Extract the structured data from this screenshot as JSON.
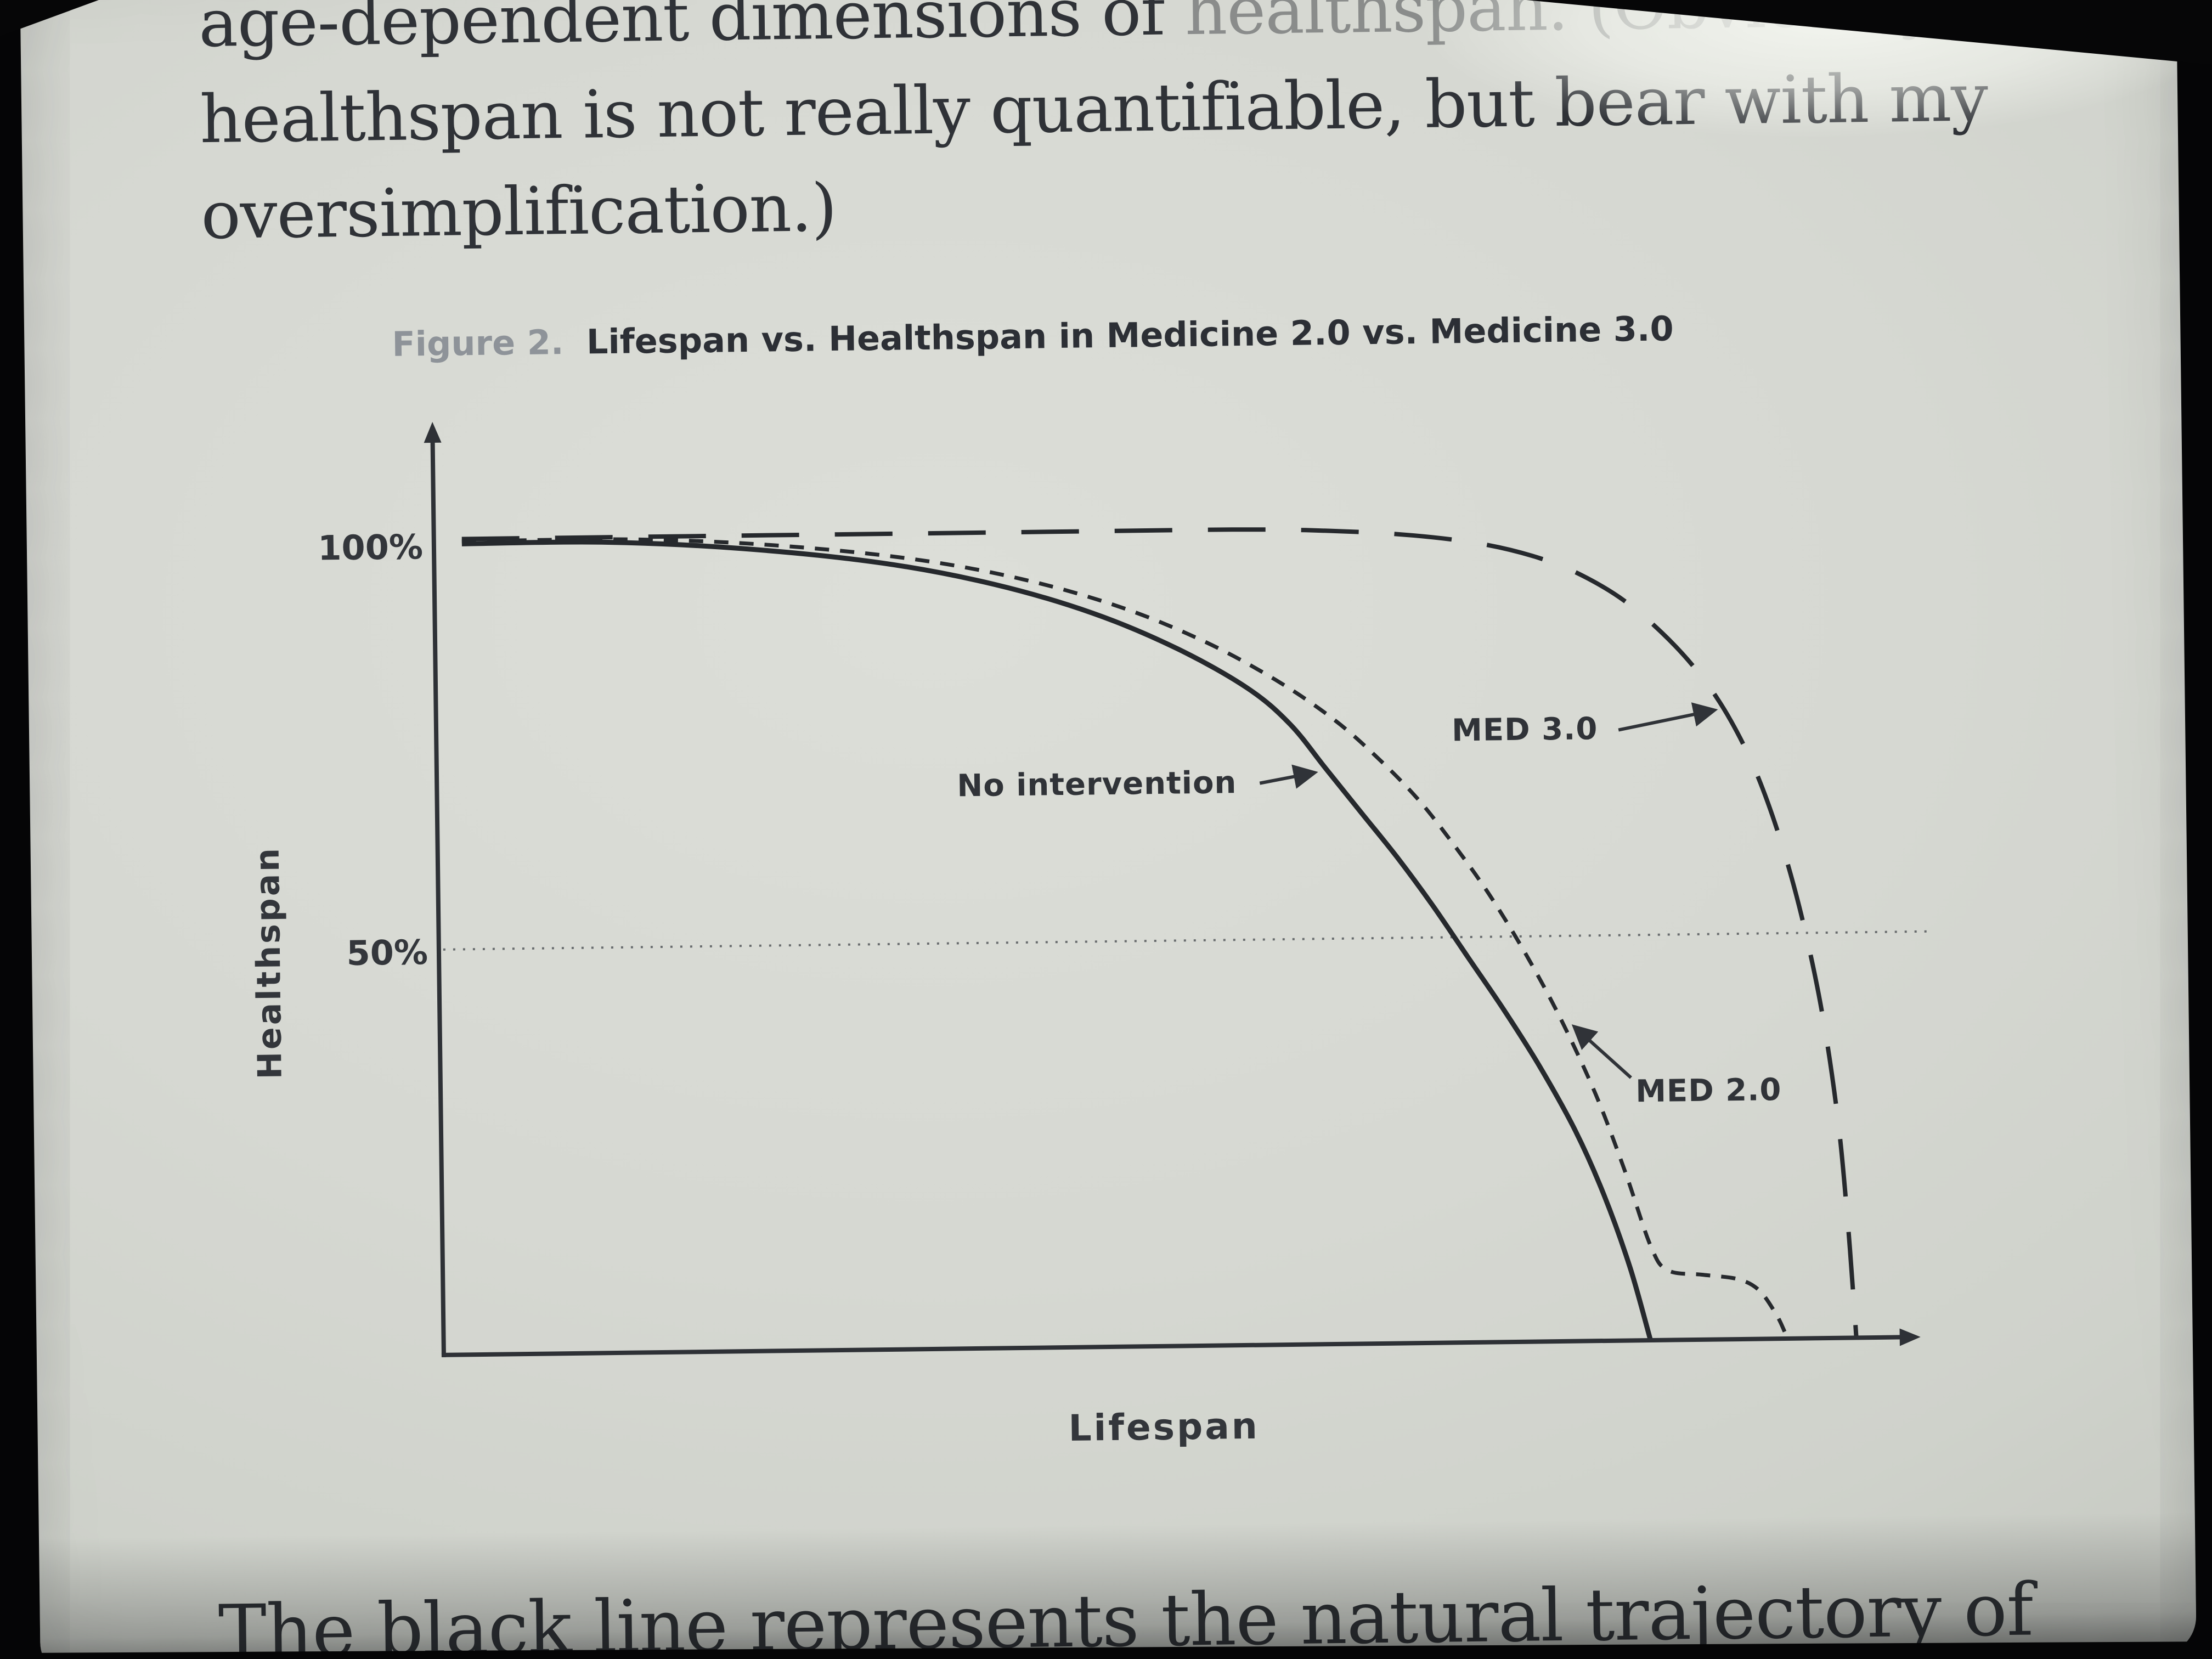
{
  "colors": {
    "page_bg": "#d6d8d2",
    "ink": "#2f3237",
    "caption_gray": "#8e9399",
    "curve": "#26292d",
    "bezel": "#050506"
  },
  "page": {
    "paragraph_top": {
      "line1_visible": "age-dependent dimensions of ",
      "line1_faded": "healthspan. (Obviously,",
      "line2": "healthspan is not really quantifiable, but bear with my",
      "line3": "oversimplification.)"
    },
    "caption": {
      "label": "Figure 2.",
      "title": "Lifespan vs. Healthspan in Medicine 2.0 vs. Medicine 3.0"
    },
    "paragraph_bottom": "The black line represents the natural trajectory of"
  },
  "chart_data": {
    "type": "line",
    "title": "Figure 2. Lifespan vs. Healthspan in Medicine 2.0 vs. Medicine 3.0",
    "xlabel": "Lifespan",
    "ylabel": "Healthspan",
    "yticks": [
      "100%",
      "50%"
    ],
    "ytick_values": [
      100,
      50
    ],
    "xlim": [
      0,
      100
    ],
    "ylim": [
      0,
      105
    ],
    "grid": false,
    "legend_position": "inline-annotations",
    "reference_line": {
      "y": 50,
      "style": "dotted"
    },
    "series": [
      {
        "name": "No intervention",
        "style": "solid",
        "points": [
          [
            0,
            100
          ],
          [
            10,
            100
          ],
          [
            20,
            99
          ],
          [
            30,
            97
          ],
          [
            38,
            94.2
          ],
          [
            45,
            90.5
          ],
          [
            51,
            86
          ],
          [
            56,
            81
          ],
          [
            59,
            76.5
          ],
          [
            61.5,
            71
          ],
          [
            64,
            65.5
          ],
          [
            66.5,
            60
          ],
          [
            69,
            54
          ],
          [
            71.5,
            47.5
          ],
          [
            74,
            41
          ],
          [
            76.5,
            34
          ],
          [
            79,
            26
          ],
          [
            81,
            18
          ],
          [
            82.8,
            9
          ],
          [
            84.2,
            0
          ]
        ]
      },
      {
        "name": "MED 2.0",
        "style": "dashed",
        "points": [
          [
            0,
            100.3
          ],
          [
            12,
            100.3
          ],
          [
            22,
            99.4
          ],
          [
            32,
            97.5
          ],
          [
            40,
            94.8
          ],
          [
            47,
            91.2
          ],
          [
            53,
            86.8
          ],
          [
            58,
            82
          ],
          [
            62,
            77.2
          ],
          [
            65,
            72.6
          ],
          [
            68,
            67.2
          ],
          [
            70.5,
            61.6
          ],
          [
            73,
            55.4
          ],
          [
            75.5,
            48.2
          ],
          [
            78,
            40
          ],
          [
            80.5,
            30.4
          ],
          [
            82.5,
            21
          ],
          [
            84.3,
            11.6
          ],
          [
            85.5,
            8.6
          ],
          [
            88,
            8
          ],
          [
            90.5,
            7.4
          ],
          [
            92,
            6
          ],
          [
            93.2,
            3
          ],
          [
            93.8,
            0.8
          ]
        ]
      },
      {
        "name": "MED 3.0",
        "style": "long-dash",
        "points": [
          [
            0,
            100.6
          ],
          [
            20,
            100.6
          ],
          [
            40,
            100.6
          ],
          [
            55,
            100.6
          ],
          [
            62,
            100.3
          ],
          [
            68,
            99.6
          ],
          [
            73,
            98.4
          ],
          [
            77,
            96.6
          ],
          [
            80,
            94.4
          ],
          [
            83,
            91.2
          ],
          [
            86,
            86.6
          ],
          [
            88.5,
            81.6
          ],
          [
            90.5,
            76.2
          ],
          [
            92.3,
            69.6
          ],
          [
            94,
            61
          ],
          [
            95.5,
            51
          ],
          [
            96.8,
            39.5
          ],
          [
            97.8,
            26.5
          ],
          [
            98.4,
            14
          ],
          [
            98.8,
            3
          ],
          [
            98.9,
            0
          ]
        ]
      }
    ]
  }
}
